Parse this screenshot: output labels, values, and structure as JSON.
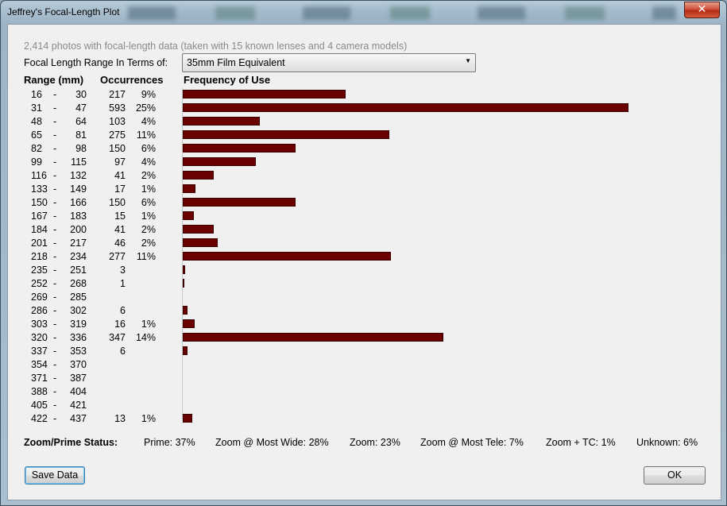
{
  "window": {
    "title": "Jeffrey's Focal-Length Plot",
    "close_glyph": "✕"
  },
  "summary": "2,414 photos with focal-length data (taken with 15 known lenses and 4 camera models)",
  "range_label": "Focal Length Range In Terms of:",
  "range_select": {
    "value": "35mm Film Equivalent"
  },
  "headers": {
    "range": "Range (mm)",
    "occurrences": "Occurrences",
    "frequency": "Frequency of Use"
  },
  "chart_data": {
    "type": "bar",
    "categories": [
      "16 - 30",
      "31 - 47",
      "48 - 64",
      "65 - 81",
      "82 - 98",
      "99 - 115",
      "116 - 132",
      "133 - 149",
      "150 - 166",
      "167 - 183",
      "184 - 200",
      "201 - 217",
      "218 - 234",
      "235 - 251",
      "252 - 268",
      "269 - 285",
      "286 - 302",
      "303 - 319",
      "320 - 336",
      "337 - 353",
      "354 - 370",
      "371 - 387",
      "388 - 404",
      "405 - 421",
      "422 - 437"
    ],
    "rows": [
      {
        "lo": "16",
        "hi": "30",
        "count": "217",
        "pct": "9%",
        "value": 217
      },
      {
        "lo": "31",
        "hi": "47",
        "count": "593",
        "pct": "25%",
        "value": 593
      },
      {
        "lo": "48",
        "hi": "64",
        "count": "103",
        "pct": "4%",
        "value": 103
      },
      {
        "lo": "65",
        "hi": "81",
        "count": "275",
        "pct": "11%",
        "value": 275
      },
      {
        "lo": "82",
        "hi": "98",
        "count": "150",
        "pct": "6%",
        "value": 150
      },
      {
        "lo": "99",
        "hi": "115",
        "count": "97",
        "pct": "4%",
        "value": 97
      },
      {
        "lo": "116",
        "hi": "132",
        "count": "41",
        "pct": "2%",
        "value": 41
      },
      {
        "lo": "133",
        "hi": "149",
        "count": "17",
        "pct": "1%",
        "value": 17
      },
      {
        "lo": "150",
        "hi": "166",
        "count": "150",
        "pct": "6%",
        "value": 150
      },
      {
        "lo": "167",
        "hi": "183",
        "count": "15",
        "pct": "1%",
        "value": 15
      },
      {
        "lo": "184",
        "hi": "200",
        "count": "41",
        "pct": "2%",
        "value": 41
      },
      {
        "lo": "201",
        "hi": "217",
        "count": "46",
        "pct": "2%",
        "value": 46
      },
      {
        "lo": "218",
        "hi": "234",
        "count": "277",
        "pct": "11%",
        "value": 277
      },
      {
        "lo": "235",
        "hi": "251",
        "count": "3",
        "pct": "",
        "value": 3
      },
      {
        "lo": "252",
        "hi": "268",
        "count": "1",
        "pct": "",
        "value": 1
      },
      {
        "lo": "269",
        "hi": "285",
        "count": "",
        "pct": "",
        "value": 0
      },
      {
        "lo": "286",
        "hi": "302",
        "count": "6",
        "pct": "",
        "value": 6
      },
      {
        "lo": "303",
        "hi": "319",
        "count": "16",
        "pct": "1%",
        "value": 16
      },
      {
        "lo": "320",
        "hi": "336",
        "count": "347",
        "pct": "14%",
        "value": 347
      },
      {
        "lo": "337",
        "hi": "353",
        "count": "6",
        "pct": "",
        "value": 6
      },
      {
        "lo": "354",
        "hi": "370",
        "count": "",
        "pct": "",
        "value": 0
      },
      {
        "lo": "371",
        "hi": "387",
        "count": "",
        "pct": "",
        "value": 0
      },
      {
        "lo": "388",
        "hi": "404",
        "count": "",
        "pct": "",
        "value": 0
      },
      {
        "lo": "405",
        "hi": "421",
        "count": "",
        "pct": "",
        "value": 0
      },
      {
        "lo": "422",
        "hi": "437",
        "count": "13",
        "pct": "1%",
        "value": 13
      }
    ],
    "max": 593,
    "bar_color": "#6a0000"
  },
  "status": {
    "label": "Zoom/Prime Status:",
    "items": [
      "Prime: 37%",
      "Zoom @ Most Wide: 28%",
      "Zoom: 23%",
      "Zoom @ Most Tele: 7%",
      "Zoom + TC: 1%",
      "Unknown: 6%"
    ]
  },
  "buttons": {
    "save": "Save Data",
    "ok": "OK"
  }
}
